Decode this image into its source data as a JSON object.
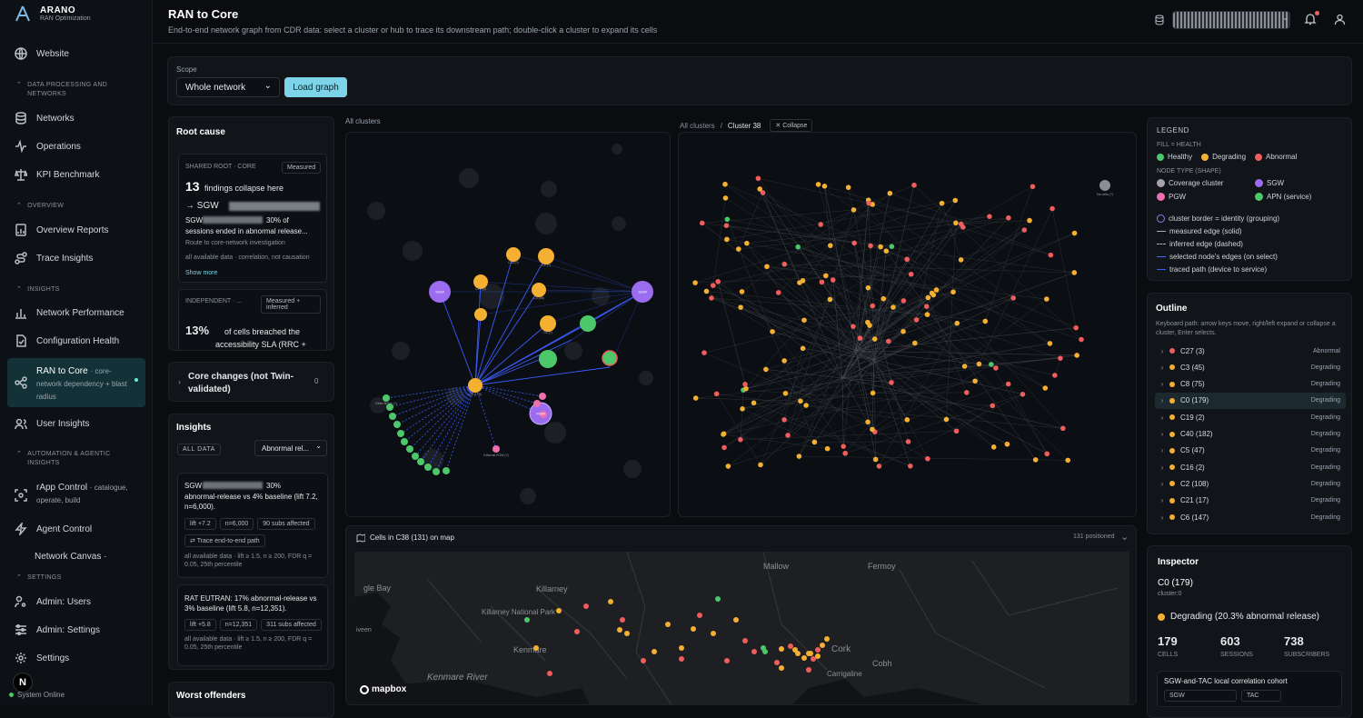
{
  "app": {
    "name": "ARANO",
    "subtitle": "RAN Optimization",
    "status": "System Online",
    "avatar_letter": "N"
  },
  "sidebar": {
    "website": "Website",
    "section_data": "DATA PROCESSING AND NETWORKS",
    "networks": "Networks",
    "operations": "Operations",
    "kpi": "KPI Benchmark",
    "section_overview": "OVERVIEW",
    "overview_reports": "Overview Reports",
    "trace_insights": "Trace Insights",
    "section_insights": "INSIGHTS",
    "network_performance": "Network Performance",
    "config_health": "Configuration Health",
    "ran_to_core": "RAN to Core",
    "ran_to_core_sub": "· core-network dependency + blast radius",
    "user_insights": "User Insights",
    "section_automation": "AUTOMATION & AGENTIC INSIGHTS",
    "rapp": "rApp Control",
    "rapp_sub": "· catalogue, operate, build",
    "agent": "Agent Control",
    "canvas": "Network Canvas ·",
    "section_settings": "SETTINGS",
    "admin_users": "Admin: Users",
    "admin_settings": "Admin: Settings",
    "settings": "Settings"
  },
  "header": {
    "title": "RAN to Core",
    "subtitle": "End-to-end network graph from CDR data: select a cluster or hub to trace its downstream path; double-click a cluster to expand its cells"
  },
  "scope": {
    "label": "Scope",
    "value": "Whole network",
    "load": "Load graph"
  },
  "root_cause": {
    "title": "Root cause",
    "card1": {
      "tag": "SHARED ROOT · CORE",
      "badge": "Measured",
      "count": "13",
      "count_text": "findings collapse here",
      "arrow": "→ SGW",
      "sgw": "SGW",
      "line1": "30% of",
      "line2": "sessions ended in abnormal release...",
      "line3": "Route to core-network investigation",
      "line4": "all available data · correlation, not causation",
      "more": "Show more"
    },
    "card2": {
      "tag": "INDEPENDENT · ...",
      "badge": "Measured + inferred",
      "pct": "13%",
      "line1": "of cells breached the",
      "line2": "accessibility SLA (RRC +"
    }
  },
  "core_changes": {
    "title": "Core changes (not Twin-validated)",
    "count": "0"
  },
  "insights": {
    "title": "Insights",
    "filter1": "ALL DATA",
    "filter2": "Abnormal rel...",
    "card1": {
      "sgw": "SGW",
      "head": "30%",
      "text": "abnormal-release vs 4% baseline (lift 7.2, n=6,000).",
      "chips": [
        "lift +7.2",
        "n=6,000",
        "90 subs affected"
      ],
      "trace": "Trace end-to-end path",
      "foot": "all available data · lift ≥ 1.5, n ≥ 200, FDR q = 0.05, 25th percentile"
    },
    "card2": {
      "text": "RAT EUTRAN: 17% abnormal-release vs 3% baseline (lift 5.8, n=12,351).",
      "chips": [
        "lift +5.8",
        "n=12,351",
        "311 subs affected"
      ],
      "foot": "all available data · lift ≥ 1.5, n ≥ 200, FDR q = 0.05, 25th percentile"
    }
  },
  "worst": {
    "title": "Worst offenders"
  },
  "graph1": {
    "label": "All clusters",
    "node_labels": [
      "C18 (?)",
      "C4 (?)",
      "C27 (3)",
      "C3 (45)",
      "C4 (?)",
      "C0 (179)",
      "Other NFNs (?)",
      "External PGW (?)"
    ],
    "hubs": [
      "SGW",
      "SGW",
      "PGW"
    ]
  },
  "graph2": {
    "breadcrumb_root": "All clusters",
    "sep": "/",
    "current": "Cluster 38",
    "collapse": "Collapse",
    "iso_label": "No cells (?)"
  },
  "map": {
    "title": "Cells in C38 (131) on map",
    "positioned": "131 positioned",
    "places": [
      "Mallow",
      "Fermoy",
      "gle Bay",
      "Killarney",
      "Killarney National Park",
      "Kenmare",
      "Cork",
      "Cobh",
      "Carrigaline",
      "iveen",
      "Kenmare River"
    ],
    "brand": "mapbox"
  },
  "legend": {
    "title": "LEGEND",
    "fill_label": "FILL = HEALTH",
    "healthy": "Healthy",
    "degrading": "Degrading",
    "abnormal": "Abnormal",
    "shape_label": "NODE TYPE (SHAPE)",
    "coverage": "Coverage cluster",
    "sgw": "SGW",
    "pgw": "PGW",
    "apn": "APN (service)",
    "lines": [
      "cluster border = identity (grouping)",
      "measured edge (solid)",
      "inferred edge (dashed)",
      "selected node's edges (on select)",
      "traced path (device to service)"
    ]
  },
  "outline": {
    "title": "Outline",
    "help": "Keyboard path: arrow keys move, right/left expand or collapse a cluster, Enter selects.",
    "rows": [
      {
        "name": "C27 (3)",
        "status": "Abnormal",
        "color": "#f05d5d"
      },
      {
        "name": "C3 (45)",
        "status": "Degrading",
        "color": "#f5b031"
      },
      {
        "name": "C8 (75)",
        "status": "Degrading",
        "color": "#f5b031"
      },
      {
        "name": "C0 (179)",
        "status": "Degrading",
        "color": "#f5b031"
      },
      {
        "name": "C19 (2)",
        "status": "Degrading",
        "color": "#f5b031"
      },
      {
        "name": "C40 (182)",
        "status": "Degrading",
        "color": "#f5b031"
      },
      {
        "name": "C5 (47)",
        "status": "Degrading",
        "color": "#f5b031"
      },
      {
        "name": "C16 (2)",
        "status": "Degrading",
        "color": "#f5b031"
      },
      {
        "name": "C2 (108)",
        "status": "Degrading",
        "color": "#f5b031"
      },
      {
        "name": "C21 (17)",
        "status": "Degrading",
        "color": "#f5b031"
      },
      {
        "name": "C6 (147)",
        "status": "Degrading",
        "color": "#f5b031"
      }
    ]
  },
  "inspector": {
    "title": "Inspector",
    "name": "C0 (179)",
    "id": "cluster:0",
    "status": "Degrading (20.3% abnormal release)",
    "cells": "179",
    "cells_label": "CELLS",
    "sessions": "603",
    "sessions_label": "SESSIONS",
    "subscribers": "738",
    "subscribers_label": "SUBSCRIBERS",
    "cohort": "SGW-and-TAC local correlation cohort",
    "cohort_chip1": "SGW",
    "cohort_chip2": "TAC"
  },
  "colors": {
    "healthy": "#4cc76a",
    "degrading": "#f5b031",
    "abnormal": "#f05d5d",
    "sgw": "#9b6cf0",
    "pgw": "#ee6fae",
    "accent": "#7dd3e8",
    "edge": "#3b5bf5"
  }
}
